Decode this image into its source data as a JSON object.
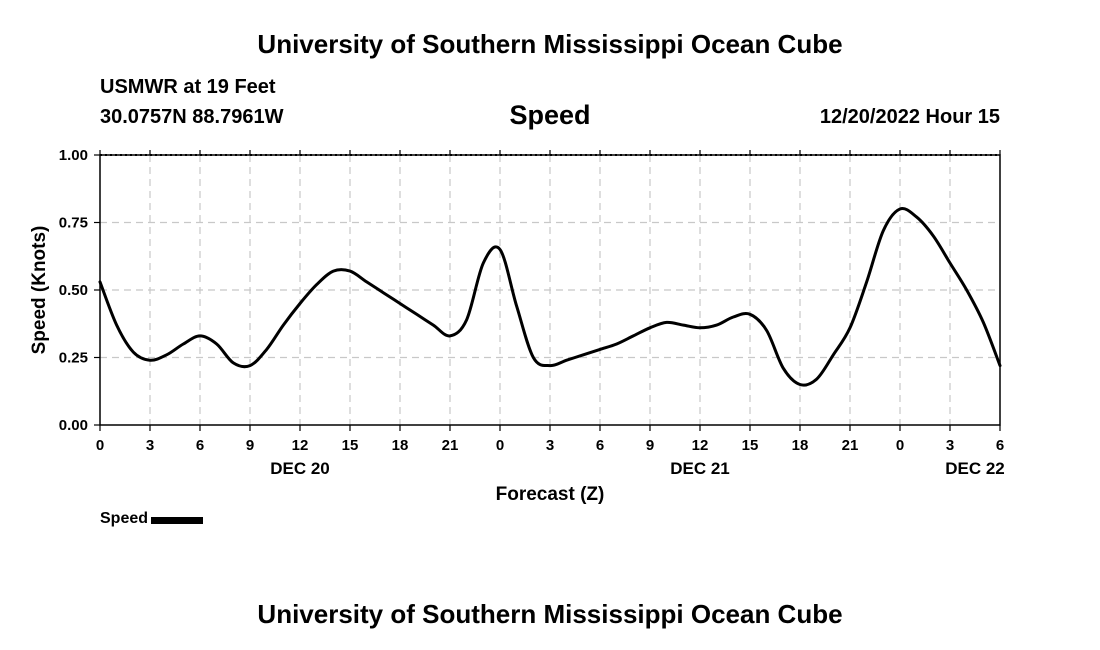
{
  "header": {
    "title": "University of Southern Mississippi Ocean Cube",
    "station": "USMWR at 19 Feet",
    "coordinates": "30.0757N  88.7961W",
    "chart_title": "Speed",
    "datetime": "12/20/2022 Hour 15"
  },
  "footer": {
    "title": "University of Southern Mississippi Ocean Cube"
  },
  "legend": {
    "label": "Speed"
  },
  "chart_data": {
    "type": "line",
    "title": "Speed",
    "xlabel": "Forecast (Z)",
    "ylabel": "Speed (Knots)",
    "xlim": [
      0,
      54
    ],
    "ylim": [
      0,
      1
    ],
    "yticks": [
      {
        "value": 0,
        "label": "0.00"
      },
      {
        "value": 0.25,
        "label": "0.25"
      },
      {
        "value": 0.5,
        "label": "0.50"
      },
      {
        "value": 0.75,
        "label": "0.75"
      },
      {
        "value": 1,
        "label": "1.00"
      }
    ],
    "xticks": [
      {
        "value": 0,
        "label": "0"
      },
      {
        "value": 3,
        "label": "3"
      },
      {
        "value": 6,
        "label": "6"
      },
      {
        "value": 9,
        "label": "9"
      },
      {
        "value": 12,
        "label": "12"
      },
      {
        "value": 15,
        "label": "15"
      },
      {
        "value": 18,
        "label": "18"
      },
      {
        "value": 21,
        "label": "21"
      },
      {
        "value": 24,
        "label": "0"
      },
      {
        "value": 27,
        "label": "3"
      },
      {
        "value": 30,
        "label": "6"
      },
      {
        "value": 33,
        "label": "9"
      },
      {
        "value": 36,
        "label": "12"
      },
      {
        "value": 39,
        "label": "15"
      },
      {
        "value": 42,
        "label": "18"
      },
      {
        "value": 45,
        "label": "21"
      },
      {
        "value": 48,
        "label": "0"
      },
      {
        "value": 51,
        "label": "3"
      },
      {
        "value": 54,
        "label": "6"
      }
    ],
    "day_labels": [
      {
        "value": 12,
        "label": "DEC 20"
      },
      {
        "value": 36,
        "label": "DEC 21"
      },
      {
        "value": 52.5,
        "label": "DEC 22"
      }
    ],
    "grid": true,
    "series": [
      {
        "name": "Speed",
        "x": [
          0,
          1,
          2,
          3,
          4,
          5,
          6,
          7,
          8,
          9,
          10,
          11,
          12,
          13,
          14,
          15,
          16,
          17,
          18,
          19,
          20,
          21,
          22,
          23,
          24,
          25,
          26,
          27,
          28,
          29,
          30,
          31,
          32,
          33,
          34,
          35,
          36,
          37,
          38,
          39,
          40,
          41,
          42,
          43,
          44,
          45,
          46,
          47,
          48,
          49,
          50,
          51,
          52,
          53,
          54
        ],
        "y": [
          0.53,
          0.37,
          0.27,
          0.24,
          0.26,
          0.3,
          0.33,
          0.3,
          0.23,
          0.22,
          0.28,
          0.37,
          0.45,
          0.52,
          0.57,
          0.57,
          0.53,
          0.49,
          0.45,
          0.41,
          0.37,
          0.33,
          0.39,
          0.6,
          0.65,
          0.44,
          0.25,
          0.22,
          0.24,
          0.26,
          0.28,
          0.3,
          0.33,
          0.36,
          0.38,
          0.37,
          0.36,
          0.37,
          0.4,
          0.41,
          0.35,
          0.21,
          0.15,
          0.17,
          0.26,
          0.36,
          0.53,
          0.72,
          0.8,
          0.77,
          0.7,
          0.6,
          0.5,
          0.38,
          0.22
        ]
      }
    ]
  }
}
